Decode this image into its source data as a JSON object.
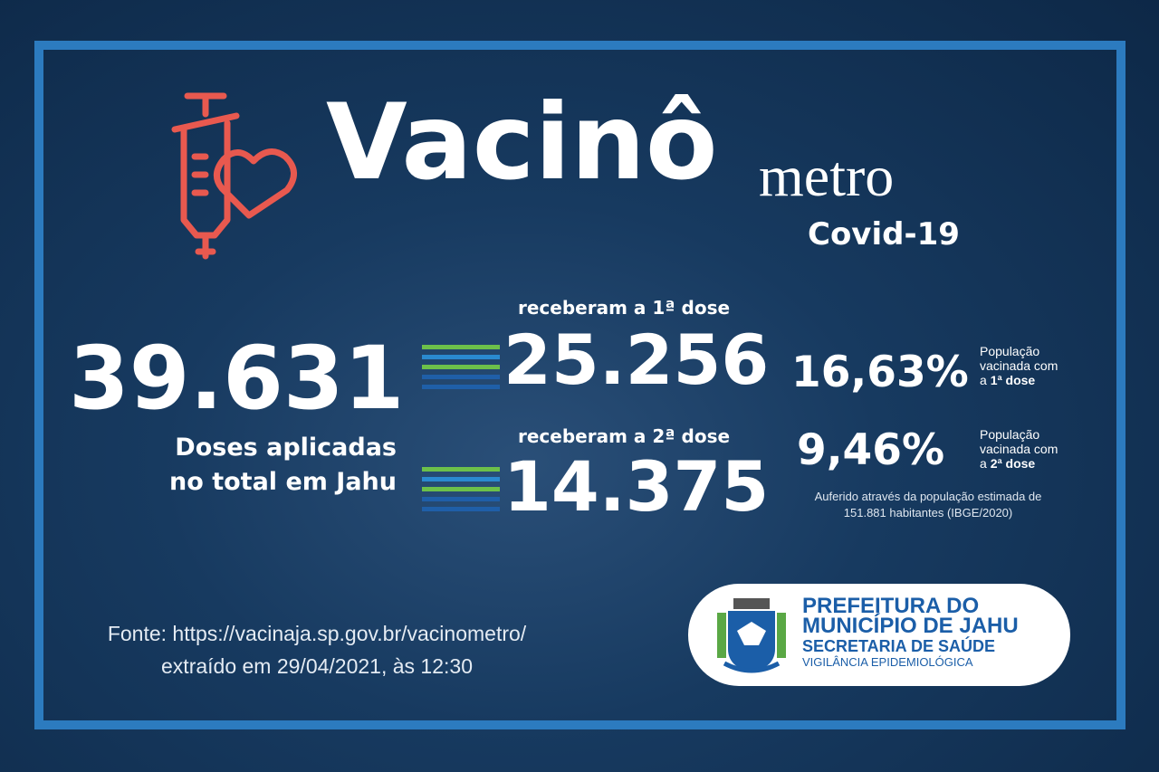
{
  "header": {
    "title": "Vacinô",
    "title_suffix": "metro",
    "subtitle": "Covid-19"
  },
  "total": {
    "value": "39.631",
    "label": [
      "Doses aplicadas",
      "no total em Jahu"
    ]
  },
  "doses": [
    {
      "label": "receberam a 1ª dose",
      "value": "25.256",
      "percent": "16,63%",
      "desc": [
        "População",
        "vacinada com"
      ],
      "desc_prefix": "a",
      "desc_bold": "1ª dose"
    },
    {
      "label": "receberam a 2ª dose",
      "value": "14.375",
      "percent": "9,46%",
      "desc": [
        "População",
        "vacinada com"
      ],
      "desc_prefix": "a",
      "desc_bold": "2ª dose"
    }
  ],
  "note": [
    "Auferido através da população estimada de",
    "151.881 habitantes (IBGE/2020)"
  ],
  "source": [
    "Fonte: https://vacinaja.sp.gov.br/vacinometro/",
    "extraído em 29/04/2021, às 12:30"
  ],
  "logo": [
    "PREFEITURA DO",
    "MUNICÍPIO DE JAHU",
    "SECRETARIA DE SAÚDE",
    "VIGILÂNCIA EPIDEMIOLÓGICA"
  ]
}
